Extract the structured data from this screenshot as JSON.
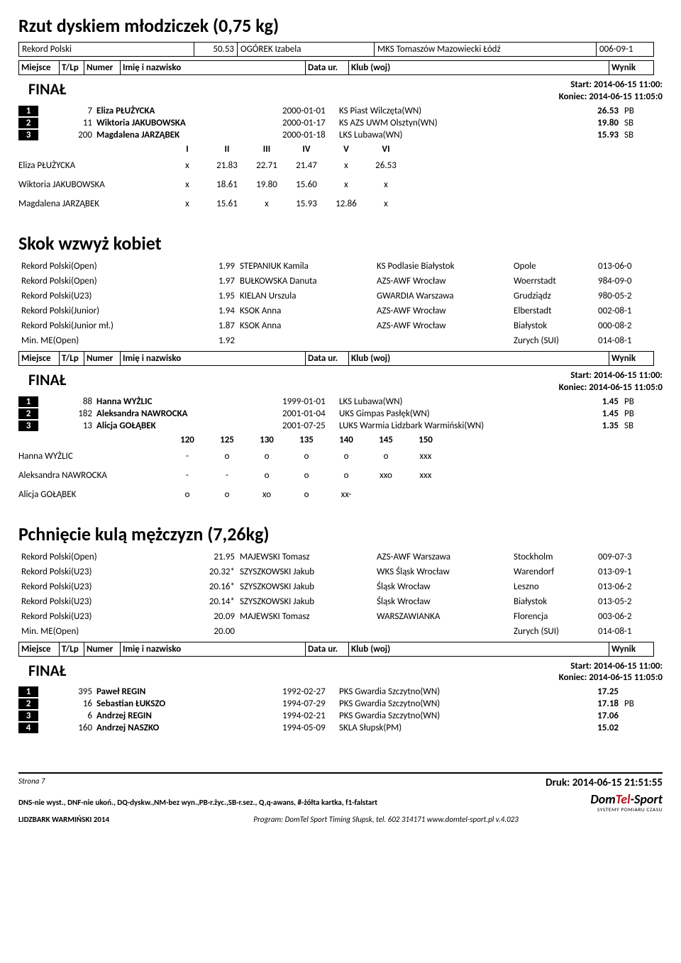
{
  "events": [
    {
      "title": "Rzut dyskiem młodziczek (0,75 kg)",
      "records": [
        {
          "cat": "Rekord Polski",
          "val": "50.53",
          "name": "OGÓREK Izabela",
          "club": "MKS Tomaszów Mazowiecki Łódź",
          "place": "",
          "date": "006-09-1"
        }
      ],
      "final_start": "Start: 2014-06-15  11:00:",
      "final_end": "Koniec: 2014-06-15  11:05:0",
      "results": [
        {
          "pl": "1",
          "num": "7",
          "name": "Eliza PŁUŻYCKA",
          "date": "2000-01-01",
          "club": "KS Piast Wilczęta(WN)",
          "val": "26.53",
          "note": "PB"
        },
        {
          "pl": "2",
          "num": "11",
          "name": "Wiktoria JAKUBOWSKA",
          "date": "2000-01-17",
          "club": "KS AZS UWM Olsztyn(WN)",
          "val": "19.80",
          "note": "SB"
        },
        {
          "pl": "3",
          "num": "200",
          "name": "Magdalena JARZĄBEK",
          "date": "2000-01-18",
          "club": "LKS Lubawa(WN)",
          "val": "15.93",
          "note": "SB"
        }
      ],
      "attempts_hdr": [
        "I",
        "II",
        "III",
        "IV",
        "V",
        "VI"
      ],
      "attempts": [
        {
          "nm": "Eliza PŁUŻYCKA",
          "a": [
            "x",
            "21.83",
            "22.71",
            "21.47",
            "x",
            "26.53"
          ]
        },
        {
          "nm": "Wiktoria JAKUBOWSKA",
          "a": [
            "x",
            "18.61",
            "19.80",
            "15.60",
            "x",
            "x"
          ]
        },
        {
          "nm": "Magdalena JARZĄBEK",
          "a": [
            "x",
            "15.61",
            "x",
            "15.93",
            "12.86",
            "x"
          ]
        }
      ]
    },
    {
      "title": "Skok wzwyż kobiet",
      "records": [
        {
          "cat": "Rekord Polski(Open)",
          "val": "1.99",
          "name": "STEPANIUK Kamila",
          "club": "KS Podlasie Białystok",
          "place": "Opole",
          "date": "013-06-0"
        },
        {
          "cat": "Rekord Polski(Open)",
          "val": "1.97",
          "name": "BUŁKOWSKA Danuta",
          "club": "AZS-AWF Wrocław",
          "place": "Woerrstadt",
          "date": "984-09-0"
        },
        {
          "cat": "Rekord Polski(U23)",
          "val": "1.95",
          "name": "KIELAN Urszula",
          "club": "GWARDIA Warszawa",
          "place": "Grudziądz",
          "date": "980-05-2"
        },
        {
          "cat": "Rekord Polski(Junior)",
          "val": "1.94",
          "name": "KSOK Anna",
          "club": "AZS-AWF Wrocław",
          "place": "Elberstadt",
          "date": "002-08-1"
        },
        {
          "cat": "Rekord Polski(Junior mł.)",
          "val": "1.87",
          "name": "KSOK Anna",
          "club": "AZS-AWF Wrocław",
          "place": "Białystok",
          "date": "000-08-2"
        },
        {
          "cat": "Min. ME(Open)",
          "val": "1.92",
          "name": "",
          "club": "",
          "place": "Zurych (SUI)",
          "date": "014-08-1"
        }
      ],
      "final_start": "Start: 2014-06-15  11:00:",
      "final_end": "Koniec: 2014-06-15  11:05:0",
      "results": [
        {
          "pl": "1",
          "num": "88",
          "name": "Hanna WYŻLIC",
          "date": "1999-01-01",
          "club": "LKS Lubawa(WN)",
          "val": "1.45",
          "note": "PB"
        },
        {
          "pl": "2",
          "num": "182",
          "name": "Aleksandra NAWROCKA",
          "date": "2001-01-04",
          "club": "UKS Gimpas Pasłęk(WN)",
          "val": "1.45",
          "note": "PB"
        },
        {
          "pl": "3",
          "num": "13",
          "name": "Alicja GOŁĄBEK",
          "date": "2001-07-25",
          "club": "LUKS Warmia Lidzbark Warmiński(WN)",
          "val": "1.35",
          "note": "SB"
        }
      ],
      "attempts_hdr": [
        "120",
        "125",
        "130",
        "135",
        "140",
        "145",
        "150"
      ],
      "attempts": [
        {
          "nm": "Hanna WYŻLIC",
          "a": [
            "-",
            "o",
            "o",
            "o",
            "o",
            "o",
            "xxx"
          ]
        },
        {
          "nm": "Aleksandra NAWROCKA",
          "a": [
            "-",
            "-",
            "o",
            "o",
            "o",
            "xxo",
            "xxx"
          ]
        },
        {
          "nm": "Alicja GOŁĄBEK",
          "a": [
            "o",
            "o",
            "xo",
            "o",
            "xx-",
            "",
            ""
          ]
        }
      ]
    },
    {
      "title": "Pchnięcie kulą mężczyzn (7,26kg)",
      "records": [
        {
          "cat": "Rekord Polski(Open)",
          "val": "21.95",
          "name": "MAJEWSKI Tomasz",
          "club": "AZS-AWF Warszawa",
          "place": "Stockholm",
          "date": "009-07-3"
        },
        {
          "cat": "Rekord Polski(U23)",
          "val": "20.32*",
          "name": "SZYSZKOWSKI Jakub",
          "club": "WKS Śląsk Wrocław",
          "place": "Warendorf",
          "date": "013-09-1"
        },
        {
          "cat": "Rekord Polski(U23)",
          "val": "20.16*",
          "name": "SZYSZKOWSKI Jakub",
          "club": "Śląsk Wrocław",
          "place": "Leszno",
          "date": "013-06-2"
        },
        {
          "cat": "Rekord Polski(U23)",
          "val": "20.14*",
          "name": "SZYSZKOWSKI Jakub",
          "club": "Śląsk Wrocław",
          "place": "Białystok",
          "date": "013-05-2"
        },
        {
          "cat": "Rekord Polski(U23)",
          "val": "20.09",
          "name": "MAJEWSKI Tomasz",
          "club": "WARSZAWIANKA",
          "place": "Florencja",
          "date": "003-06-2"
        },
        {
          "cat": "Min. ME(Open)",
          "val": "20.00",
          "name": "",
          "club": "",
          "place": "Zurych (SUI)",
          "date": "014-08-1"
        }
      ],
      "final_start": "Start: 2014-06-15  11:00:",
      "final_end": "Koniec: 2014-06-15  11:05:0",
      "results": [
        {
          "pl": "1",
          "num": "395",
          "name": "Paweł REGIN",
          "date": "1992-02-27",
          "club": "PKS Gwardia Szczytno(WN)",
          "val": "17.25",
          "note": ""
        },
        {
          "pl": "2",
          "num": "16",
          "name": "Sebastian ŁUKSZO",
          "date": "1994-07-29",
          "club": "PKS Gwardia Szczytno(WN)",
          "val": "17.18",
          "note": "PB"
        },
        {
          "pl": "3",
          "num": "6",
          "name": "Andrzej REGIN",
          "date": "1994-02-21",
          "club": "PKS Gwardia Szczytno(WN)",
          "val": "17.06",
          "note": ""
        },
        {
          "pl": "4",
          "num": "160",
          "name": "Andrzej NASZKO",
          "date": "1994-05-09",
          "club": "SKLA Słupsk(PM)",
          "val": "15.02",
          "note": ""
        }
      ]
    }
  ],
  "columns": {
    "place": "Miejsce",
    "tlp": "T/Lp",
    "num": "Numer",
    "name": "Imię i nazwisko",
    "date": "Data ur.",
    "club": "Klub (woj)",
    "res": "Wynik"
  },
  "final_label": "FINAŁ",
  "footer": {
    "page": "Strona 7",
    "print": "Druk: 2014-06-15 21:51:55",
    "legend": "DNS-nie wyst., DNF-nie ukoń., DQ-dyskw.,NM-bez wyn.,PB-r.życ.,SB-r.sez., Q,q-awans, #-żółta kartka, f1-falstart",
    "comp": "LIDZBARK WARMIŃSKI 2014",
    "prog": "Program: DomTel Sport Timing Słupsk, tel. 602 314171  www.domtel-sport.pl v.4.023"
  }
}
